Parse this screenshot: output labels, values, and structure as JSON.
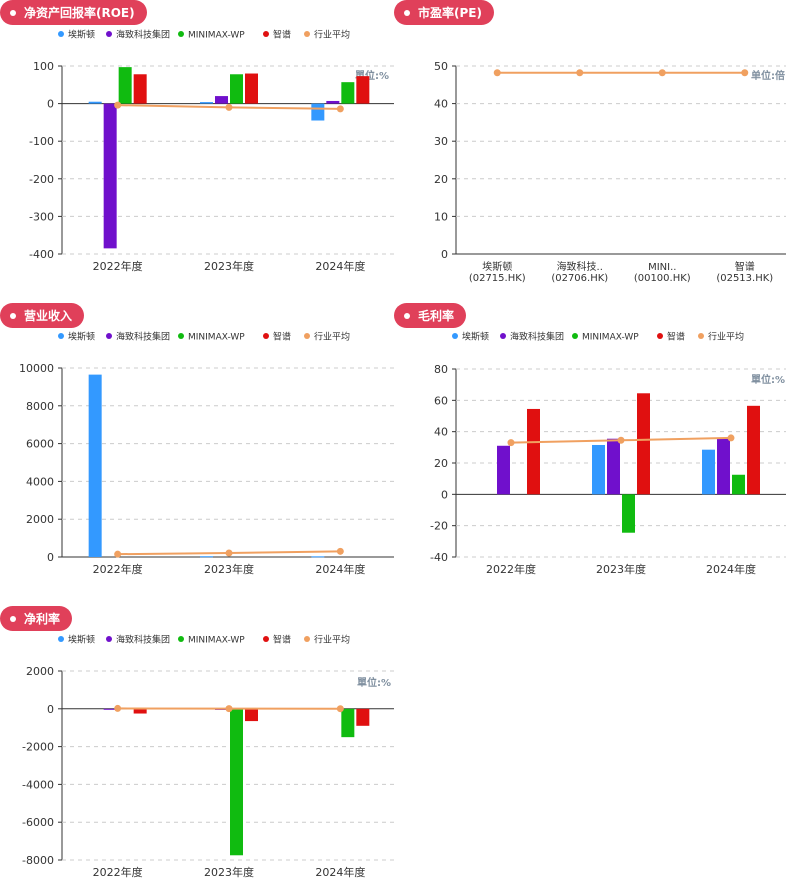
{
  "legend_labels": [
    "埃斯顿",
    "海致科技集团",
    "MINIMAX-WP",
    "智谱",
    "行业平均"
  ],
  "colors": {
    "series": [
      "#3399ff",
      "#7010cc",
      "#10bb10",
      "#e01010",
      "#f0a060"
    ],
    "pill": "#e0405a",
    "unit_text": "#8090a0"
  },
  "panels": {
    "roe": {
      "title": "净资产回报率(ROE)",
      "unit": "單位:%"
    },
    "pe": {
      "title": "市盈率(PE)",
      "unit": "单位:倍"
    },
    "revenue": {
      "title": "营业收入"
    },
    "gross_margin": {
      "title": "毛利率",
      "unit": "單位:%"
    },
    "net_margin": {
      "title": "净利率",
      "unit": "單位:%"
    }
  },
  "chart_data": [
    {
      "id": "roe",
      "type": "bar",
      "title": "净资产回报率(ROE)",
      "categories": [
        "2022年度",
        "2023年度",
        "2024年度"
      ],
      "ylim": [
        -400,
        100
      ],
      "yticks": [
        100,
        0,
        -100,
        -200,
        -300,
        -400
      ],
      "grid": true,
      "series": [
        {
          "name": "埃斯顿",
          "values": [
            5,
            4,
            -45
          ]
        },
        {
          "name": "海致科技集团",
          "values": [
            -385,
            20,
            7
          ]
        },
        {
          "name": "MINIMAX-WP",
          "values": [
            97,
            78,
            57
          ]
        },
        {
          "name": "智谱",
          "values": [
            78,
            80,
            73
          ]
        }
      ],
      "line": {
        "name": "行业平均",
        "values": [
          -4,
          -10,
          -14
        ]
      }
    },
    {
      "id": "pe",
      "type": "line",
      "title": "市盈率(PE)",
      "categories": [
        "埃斯顿\n(02715.HK)",
        "海致科技..\n(02706.HK)",
        "MINI..\n(00100.HK)",
        "智谱\n(02513.HK)"
      ],
      "ylim": [
        0,
        50
      ],
      "yticks": [
        50,
        40,
        30,
        20,
        10,
        0
      ],
      "grid": true,
      "series": [],
      "line": {
        "name": "行业平均",
        "values": [
          48.2,
          48.2,
          48.2,
          48.2
        ]
      }
    },
    {
      "id": "revenue",
      "type": "bar",
      "title": "营业收入",
      "categories": [
        "2022年度",
        "2023年度",
        "2024年度"
      ],
      "ylim": [
        0,
        10000
      ],
      "yticks": [
        10000,
        8000,
        6000,
        4000,
        2000,
        0
      ],
      "grid": true,
      "series": [
        {
          "name": "埃斯顿",
          "values": [
            9650,
            40,
            35
          ]
        },
        {
          "name": "海致科技集团",
          "values": [
            0,
            0,
            0
          ]
        },
        {
          "name": "MINIMAX-WP",
          "values": [
            0,
            0,
            0
          ]
        },
        {
          "name": "智谱",
          "values": [
            0,
            0,
            0
          ]
        }
      ],
      "line": {
        "name": "行业平均",
        "values": [
          150,
          210,
          300
        ]
      }
    },
    {
      "id": "gross_margin",
      "type": "bar",
      "title": "毛利率",
      "categories": [
        "2022年度",
        "2023年度",
        "2024年度"
      ],
      "ylim": [
        -40,
        80
      ],
      "yticks": [
        80,
        60,
        40,
        20,
        0,
        -20,
        -40
      ],
      "grid": true,
      "series": [
        {
          "name": "埃斯顿",
          "values": [
            0,
            31.5,
            28.5
          ]
        },
        {
          "name": "海致科技集团",
          "values": [
            31,
            35.5,
            36
          ]
        },
        {
          "name": "MINIMAX-WP",
          "values": [
            0,
            -24.5,
            12.5
          ]
        },
        {
          "name": "智谱",
          "values": [
            54.5,
            64.5,
            56.5
          ]
        }
      ],
      "line": {
        "name": "行业平均",
        "values": [
          33,
          34.5,
          36
        ]
      }
    },
    {
      "id": "net_margin",
      "type": "bar",
      "title": "净利率",
      "categories": [
        "2022年度",
        "2023年度",
        "2024年度"
      ],
      "ylim": [
        -8000,
        2000
      ],
      "yticks": [
        2000,
        0,
        -2000,
        -4000,
        -6000,
        -8000
      ],
      "grid": true,
      "series": [
        {
          "name": "埃斯顿",
          "values": [
            0,
            0,
            0
          ]
        },
        {
          "name": "海致科技集团",
          "values": [
            -30,
            -60,
            0
          ]
        },
        {
          "name": "MINIMAX-WP",
          "values": [
            0,
            -7750,
            -1500
          ]
        },
        {
          "name": "智谱",
          "values": [
            -250,
            -650,
            -900
          ]
        }
      ],
      "line": {
        "name": "行业平均",
        "values": [
          20,
          10,
          5
        ]
      }
    }
  ]
}
